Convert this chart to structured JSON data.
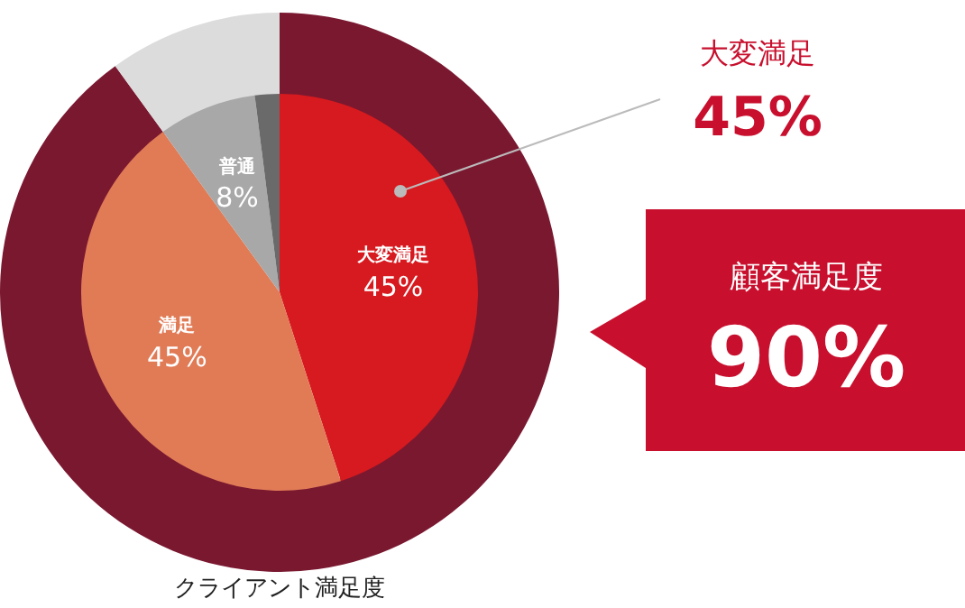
{
  "chart_data": [
    {
      "type": "donut",
      "title": "クライアント満足度",
      "categories": [
        null,
        null
      ],
      "values": [
        90,
        10
      ],
      "colors": [
        "#7a1830",
        "#dcdcdc"
      ],
      "annotations": [
        "顧客満足度",
        "90%"
      ],
      "legend": false
    },
    {
      "type": "pie",
      "categories": [
        "大変満足",
        "満足",
        "普通",
        null
      ],
      "values": [
        45,
        45,
        8,
        2
      ],
      "colors": [
        "#d71a1f",
        "#e07b56",
        "#a8a8a8",
        "#6a6a6a"
      ],
      "value_labels": [
        "45%",
        "45%",
        "8%",
        null
      ],
      "annotations": [
        "大変満足",
        "45%"
      ],
      "legend": false
    }
  ]
}
